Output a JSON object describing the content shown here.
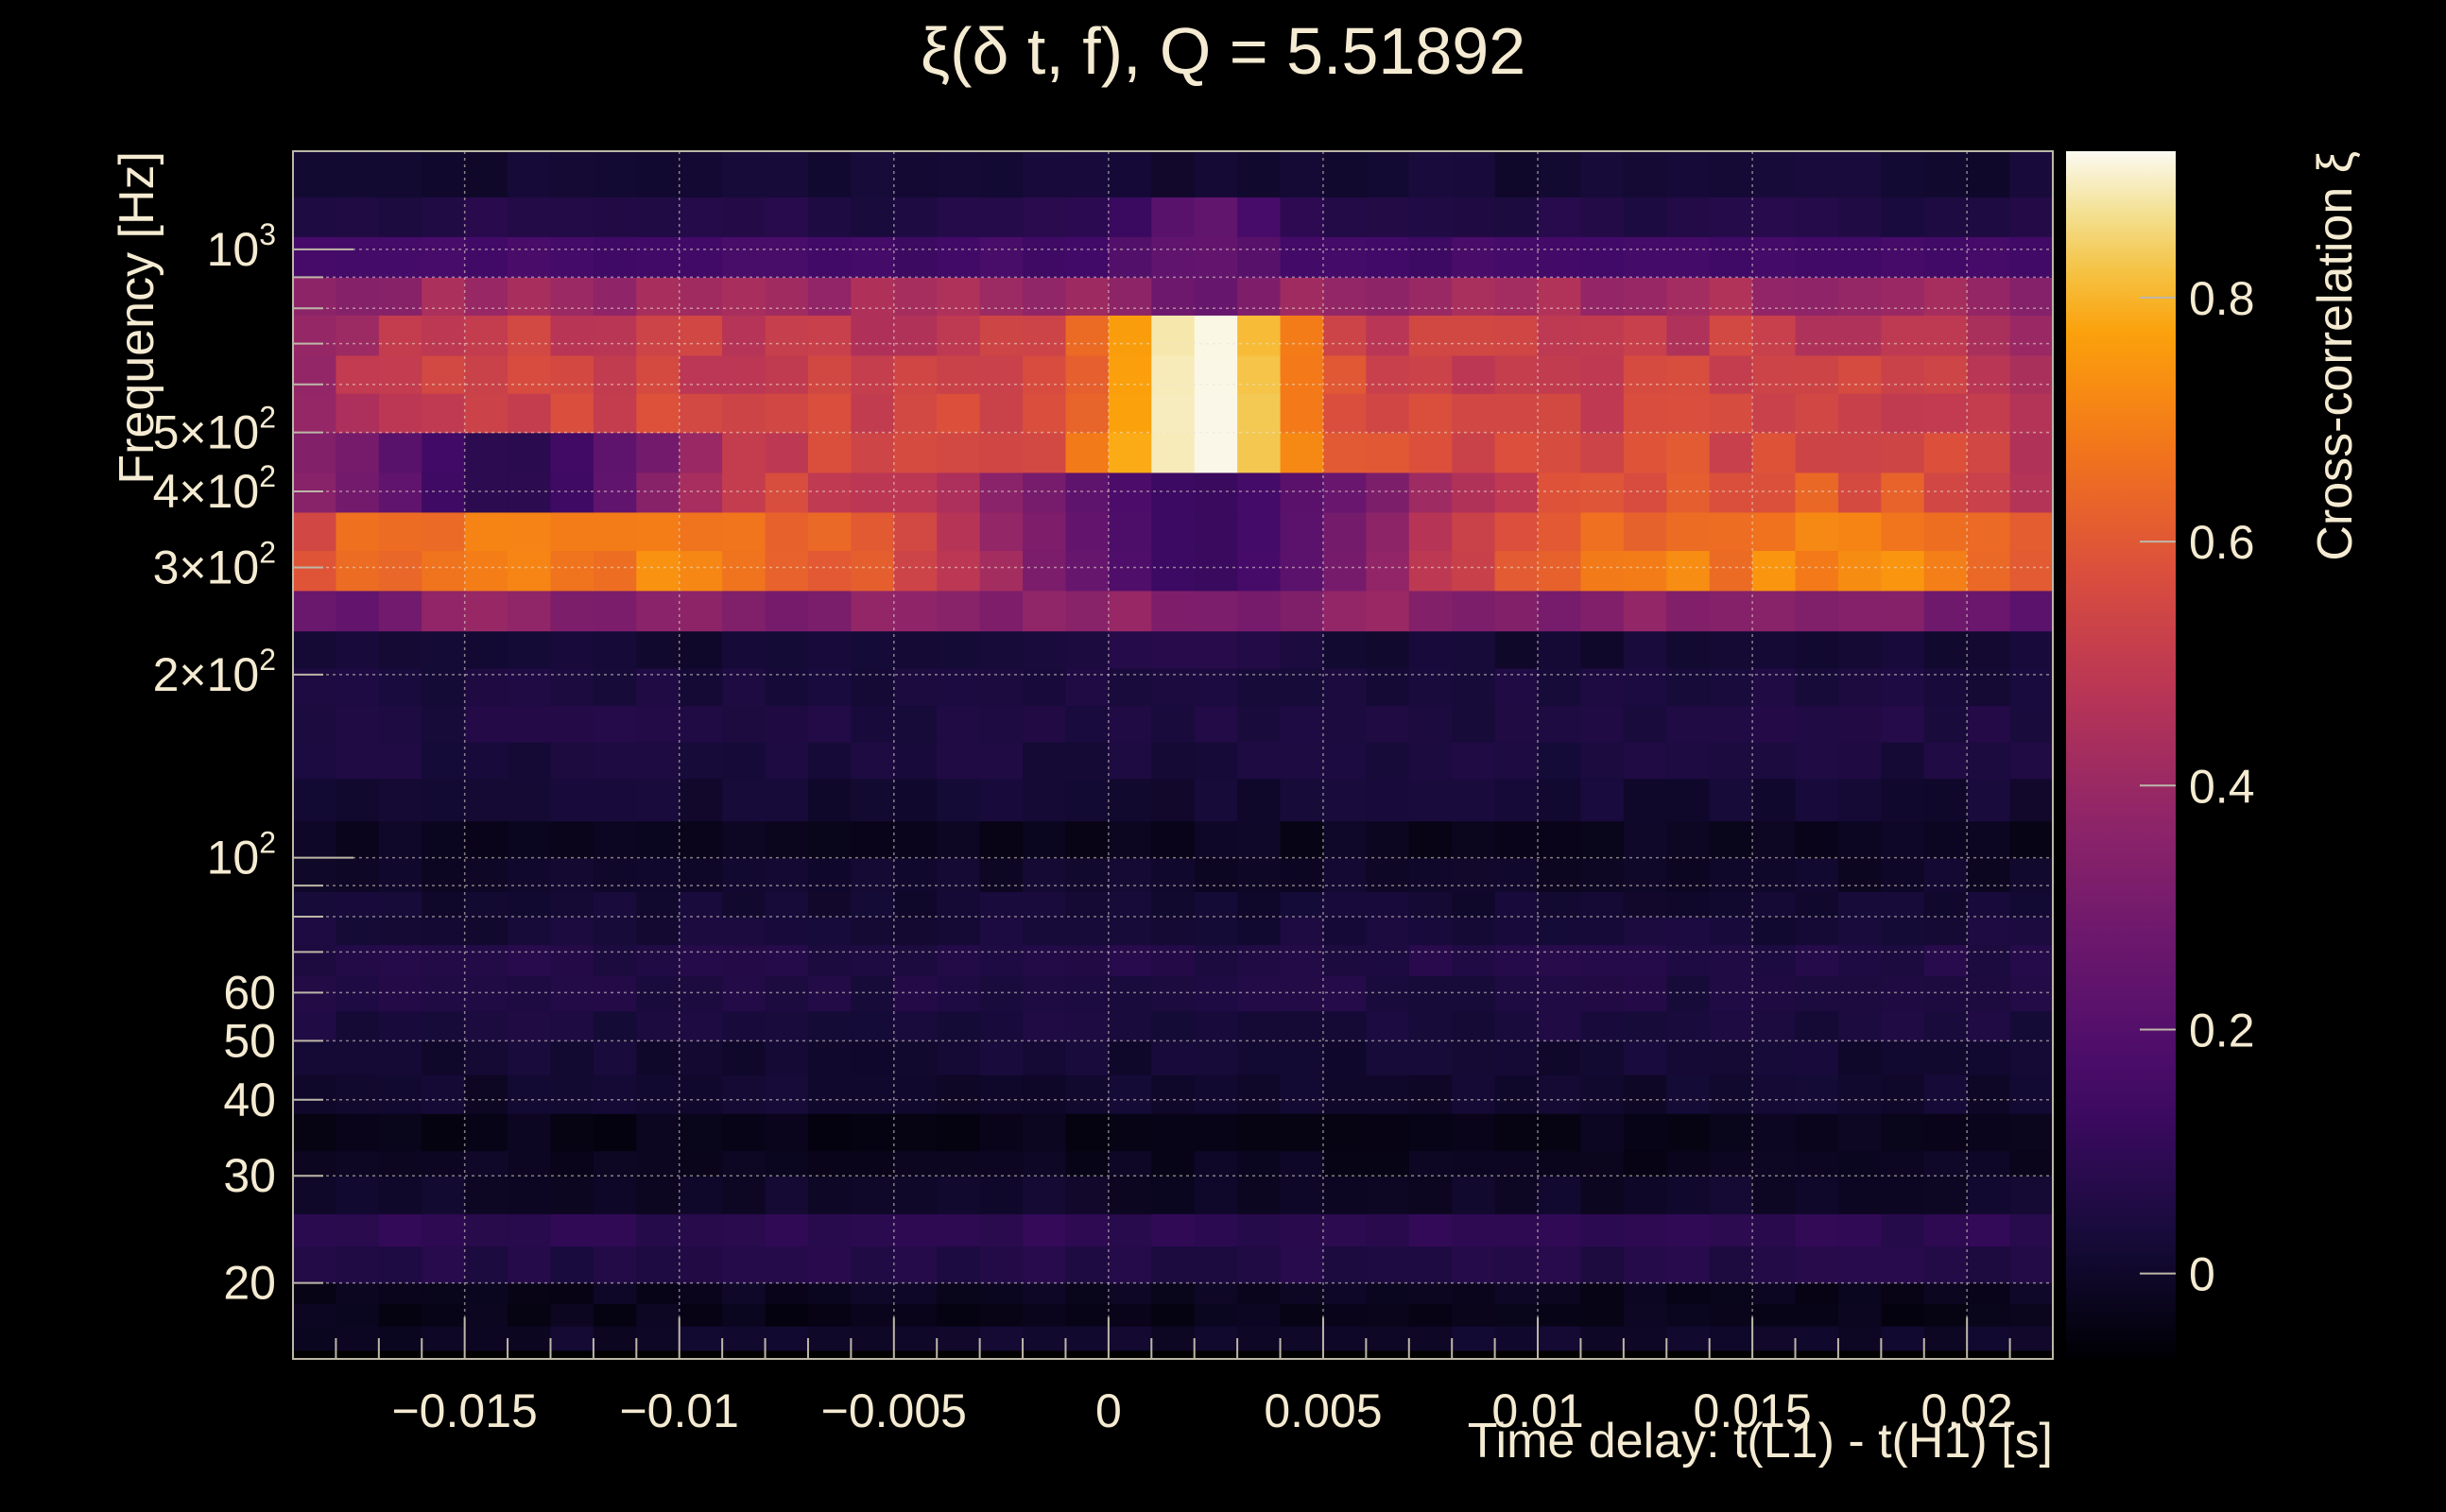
{
  "chart_data": {
    "type": "heatmap",
    "title": "ξ(δ t, f), Q = 5.51892",
    "xlabel": "Time delay: t(L1) - t(H1) [s]",
    "ylabel": "Frequency [Hz]",
    "zlabel": "Cross-correlation ξ",
    "xlim": [
      -0.019,
      0.022
    ],
    "ylim": [
      15,
      1450
    ],
    "zlim": [
      -0.07,
      0.92
    ],
    "y_scale": "log",
    "grid": true,
    "colormap": "inferno",
    "x_ticks": [
      {
        "value": -0.015,
        "label": "−0.015"
      },
      {
        "value": -0.01,
        "label": "−0.01"
      },
      {
        "value": -0.005,
        "label": "−0.005"
      },
      {
        "value": 0,
        "label": "0"
      },
      {
        "value": 0.005,
        "label": "0.005"
      },
      {
        "value": 0.01,
        "label": "0.01"
      },
      {
        "value": 0.015,
        "label": "0.015"
      },
      {
        "value": 0.02,
        "label": "0.02"
      }
    ],
    "y_ticks": [
      {
        "value": 20,
        "label": "20"
      },
      {
        "value": 30,
        "label": "30"
      },
      {
        "value": 40,
        "label": "40"
      },
      {
        "value": 50,
        "label": "50"
      },
      {
        "value": 60,
        "label": "60"
      },
      {
        "value": 100,
        "label": "10",
        "sup": "2"
      },
      {
        "value": 200,
        "label": "2×10",
        "sup": "2"
      },
      {
        "value": 300,
        "label": "3×10",
        "sup": "2"
      },
      {
        "value": 400,
        "label": "4×10",
        "sup": "2"
      },
      {
        "value": 500,
        "label": "5×10",
        "sup": "2"
      },
      {
        "value": 1000,
        "label": "10",
        "sup": "3"
      }
    ],
    "z_ticks": [
      {
        "value": 0,
        "label": "0"
      },
      {
        "value": 0.2,
        "label": "0.2"
      },
      {
        "value": 0.4,
        "label": "0.4"
      },
      {
        "value": 0.6,
        "label": "0.6"
      },
      {
        "value": 0.8,
        "label": "0.8"
      }
    ],
    "freq_bins": [
      {
        "lo": 15.5,
        "hi": 17.0,
        "base": 0.0
      },
      {
        "lo": 17.0,
        "hi": 18.5,
        "base": -0.03
      },
      {
        "lo": 18.5,
        "hi": 20.0,
        "base": -0.02
      },
      {
        "lo": 20.0,
        "hi": 23.0,
        "base": 0.06
      },
      {
        "lo": 23.0,
        "hi": 26.0,
        "base": 0.09
      },
      {
        "lo": 26.0,
        "hi": 30.0,
        "base": 0.0
      },
      {
        "lo": 30.0,
        "hi": 33.0,
        "base": -0.02
      },
      {
        "lo": 33.0,
        "hi": 38.0,
        "base": -0.03
      },
      {
        "lo": 38.0,
        "hi": 44.0,
        "base": 0.01
      },
      {
        "lo": 44.0,
        "hi": 50.0,
        "base": 0.02
      },
      {
        "lo": 50.0,
        "hi": 56.0,
        "base": 0.04
      },
      {
        "lo": 56.0,
        "hi": 64.0,
        "base": 0.05
      },
      {
        "lo": 64.0,
        "hi": 72.0,
        "base": 0.06
      },
      {
        "lo": 72.0,
        "hi": 80.0,
        "base": 0.03
      },
      {
        "lo": 80.0,
        "hi": 88.0,
        "base": 0.02
      },
      {
        "lo": 88.0,
        "hi": 100.0,
        "base": 0.0
      },
      {
        "lo": 100.0,
        "hi": 115.0,
        "base": -0.02
      },
      {
        "lo": 115.0,
        "hi": 135.0,
        "base": 0.02
      },
      {
        "lo": 135.0,
        "hi": 155.0,
        "base": 0.04
      },
      {
        "lo": 155.0,
        "hi": 178.0,
        "base": 0.05
      },
      {
        "lo": 178.0,
        "hi": 205.0,
        "base": 0.04
      },
      {
        "lo": 205.0,
        "hi": 236.0,
        "base": 0.02
      },
      {
        "lo": 236.0,
        "hi": 275.0,
        "base": 0.35
      },
      {
        "lo": 275.0,
        "hi": 320.0,
        "base": 0.7
      },
      {
        "lo": 320.0,
        "hi": 370.0,
        "base": 0.68
      },
      {
        "lo": 370.0,
        "hi": 430.0,
        "base": 0.6
      },
      {
        "lo": 430.0,
        "hi": 500.0,
        "base": 0.56
      },
      {
        "lo": 500.0,
        "hi": 580.0,
        "base": 0.54
      },
      {
        "lo": 580.0,
        "hi": 670.0,
        "base": 0.52
      },
      {
        "lo": 670.0,
        "hi": 780.0,
        "base": 0.5
      },
      {
        "lo": 780.0,
        "hi": 900.0,
        "base": 0.42
      },
      {
        "lo": 900.0,
        "hi": 1050.0,
        "base": 0.15
      },
      {
        "lo": 1050.0,
        "hi": 1220.0,
        "base": 0.06
      },
      {
        "lo": 1220.0,
        "hi": 1450.0,
        "base": 0.02
      }
    ],
    "time_bins": {
      "start": -0.019,
      "end": 0.022,
      "step": 0.001
    },
    "features": [
      {
        "t0": 0.0022,
        "sigma_t": 0.0017,
        "f_lo": 275.0,
        "f_hi": 780.0,
        "peak": 0.92
      },
      {
        "t0": 0.0022,
        "sigma_t": 0.0012,
        "f_lo": 780.0,
        "f_hi": 1220.0,
        "peak": 0.25
      },
      {
        "t0": 0.0022,
        "sigma_t": 0.004,
        "f_lo": 275.0,
        "f_hi": 430.0,
        "peak": 0.12
      },
      {
        "t0": -0.014,
        "sigma_t": 0.003,
        "f_lo": 370.0,
        "f_hi": 500.0,
        "peak": 0.08
      }
    ]
  }
}
